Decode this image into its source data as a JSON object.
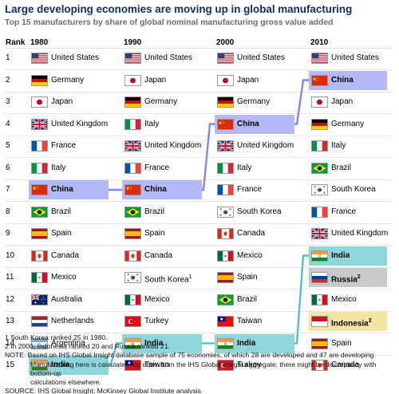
{
  "chart_data": {
    "type": "table",
    "title": "Large developing economies are moving up in global manufacturing",
    "subtitle": "Top 15 manufacturers by share of global nominal manufacturing gross value added",
    "rank_header": "Rank",
    "ranks": [
      "1",
      "2",
      "3",
      "4",
      "5",
      "6",
      "7",
      "8",
      "9",
      "10",
      "11",
      "12",
      "13",
      "14",
      "15"
    ],
    "columns": [
      {
        "year": "1980",
        "countries": [
          {
            "name": "United States",
            "flag": "us"
          },
          {
            "name": "Germany",
            "flag": "de"
          },
          {
            "name": "Japan",
            "flag": "jp"
          },
          {
            "name": "United Kingdom",
            "flag": "uk"
          },
          {
            "name": "France",
            "flag": "fr"
          },
          {
            "name": "Italy",
            "flag": "it"
          },
          {
            "name": "China",
            "flag": "cn",
            "highlight": "blue"
          },
          {
            "name": "Brazil",
            "flag": "br"
          },
          {
            "name": "Spain",
            "flag": "es"
          },
          {
            "name": "Canada",
            "flag": "ca"
          },
          {
            "name": "Mexico",
            "flag": "mx"
          },
          {
            "name": "Australia",
            "flag": "au"
          },
          {
            "name": "Netherlands",
            "flag": "nl"
          },
          {
            "name": "Argentina",
            "flag": "ar"
          },
          {
            "name": "India",
            "flag": "in",
            "highlight": "teal"
          }
        ]
      },
      {
        "year": "1990",
        "countries": [
          {
            "name": "United States",
            "flag": "us"
          },
          {
            "name": "Japan",
            "flag": "jp"
          },
          {
            "name": "Germany",
            "flag": "de"
          },
          {
            "name": "Italy",
            "flag": "it"
          },
          {
            "name": "United Kingdom",
            "flag": "uk"
          },
          {
            "name": "France",
            "flag": "fr"
          },
          {
            "name": "China",
            "flag": "cn",
            "highlight": "blue"
          },
          {
            "name": "Brazil",
            "flag": "br"
          },
          {
            "name": "Spain",
            "flag": "es"
          },
          {
            "name": "Canada",
            "flag": "ca"
          },
          {
            "name": "South Korea",
            "sup": "1",
            "flag": "kr"
          },
          {
            "name": "Mexico",
            "flag": "mx"
          },
          {
            "name": "Turkey",
            "flag": "tr"
          },
          {
            "name": "India",
            "flag": "in",
            "highlight": "teal"
          },
          {
            "name": "Taiwan",
            "flag": "tw"
          }
        ]
      },
      {
        "year": "2000",
        "countries": [
          {
            "name": "United States",
            "flag": "us"
          },
          {
            "name": "Japan",
            "flag": "jp"
          },
          {
            "name": "Germany",
            "flag": "de"
          },
          {
            "name": "China",
            "flag": "cn",
            "highlight": "blue"
          },
          {
            "name": "United Kingdom",
            "flag": "uk"
          },
          {
            "name": "Italy",
            "flag": "it"
          },
          {
            "name": "France",
            "flag": "fr"
          },
          {
            "name": "South Korea",
            "flag": "kr"
          },
          {
            "name": "Canada",
            "flag": "ca"
          },
          {
            "name": "Mexico",
            "flag": "mx"
          },
          {
            "name": "Spain",
            "flag": "es"
          },
          {
            "name": "Brazil",
            "flag": "br"
          },
          {
            "name": "Taiwan",
            "flag": "tw"
          },
          {
            "name": "India",
            "flag": "in",
            "highlight": "teal"
          },
          {
            "name": "Turkey",
            "flag": "tr"
          }
        ]
      },
      {
        "year": "2010",
        "countries": [
          {
            "name": "United States",
            "flag": "us"
          },
          {
            "name": "China",
            "flag": "cn",
            "highlight": "blue"
          },
          {
            "name": "Japan",
            "flag": "jp"
          },
          {
            "name": "Germany",
            "flag": "de"
          },
          {
            "name": "Italy",
            "flag": "it"
          },
          {
            "name": "Brazil",
            "flag": "br"
          },
          {
            "name": "South Korea",
            "flag": "kr"
          },
          {
            "name": "France",
            "flag": "fr"
          },
          {
            "name": "United Kingdom",
            "flag": "uk"
          },
          {
            "name": "India",
            "flag": "in",
            "highlight": "teal"
          },
          {
            "name": "Russia",
            "sup": "2",
            "flag": "ru",
            "highlight": "gray"
          },
          {
            "name": "Mexico",
            "flag": "mx"
          },
          {
            "name": "Indonesia",
            "sup": "2",
            "flag": "id",
            "highlight": "yellow"
          },
          {
            "name": "Spain",
            "flag": "es"
          },
          {
            "name": "Canada",
            "flag": "ca"
          }
        ]
      }
    ],
    "connectors": [
      {
        "country": "China",
        "ranks": [
          7,
          7,
          4,
          2
        ],
        "color": "#7f86ee"
      },
      {
        "country": "India",
        "ranks": [
          15,
          14,
          14,
          10
        ],
        "color": "#55bfca"
      }
    ],
    "notes": {
      "n1": "1  South Korea ranked 25 in 1980.",
      "n2": "2  In 2000, Indonesia ranked 20 and Russia ranked 21.",
      "n3": "NOTE: Based on IHS Global Insight database sample of 75 economies, of which 28 are developed and 47 are developing.",
      "n4": "Manufacturing here is calculated top down from the IHS Global Insight aggregate; there might be discrepancy with bottom-up",
      "n5": "calculations elsewhere.",
      "source": "SOURCE: IHS Global Insight; McKinsey Global Institute analysis"
    }
  }
}
